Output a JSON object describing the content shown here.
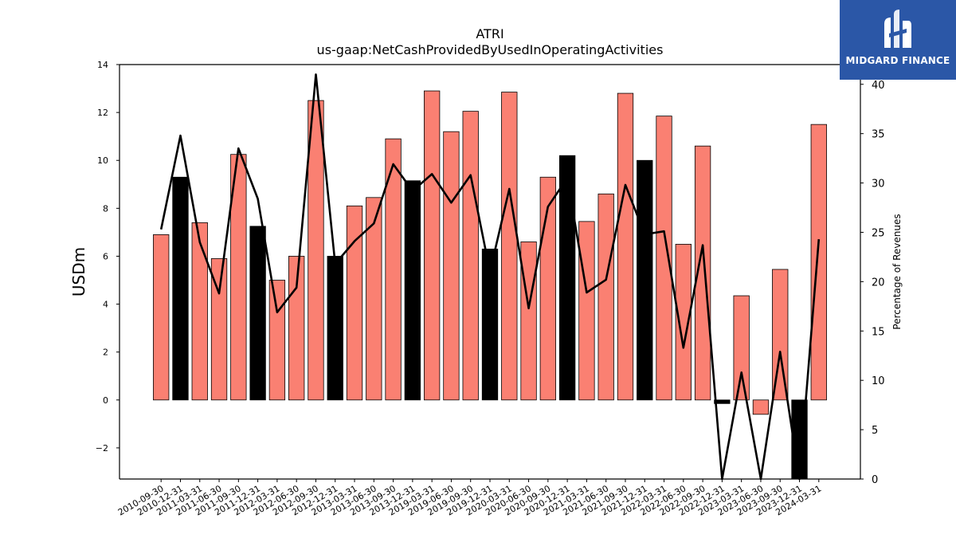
{
  "logo": {
    "text": "MIDGARD FINANCE",
    "icon": "midgard-logo-icon",
    "background": "#2b57a7"
  },
  "chart_data": {
    "type": "bar",
    "title": "ATRI",
    "subtitle": "us-gaap:NetCashProvidedByUsedInOperatingActivities",
    "ylabel": "USDm",
    "ylabel_right": "Percentage of Revenues",
    "ylim": [
      -3.3,
      14
    ],
    "ylim_right": [
      0,
      42
    ],
    "yticks": [
      "−2",
      "0",
      "2",
      "4",
      "6",
      "8",
      "10",
      "12",
      "14"
    ],
    "yticks_right": [
      "0",
      "5",
      "10",
      "15",
      "20",
      "25",
      "30",
      "35",
      "40"
    ],
    "grid": false,
    "colors": {
      "bar": "#fa8072",
      "bar_q4": "#000000",
      "line": "#000000"
    },
    "categories": [
      "2010-09-30",
      "2010-12-31",
      "2011-03-31",
      "2011-06-30",
      "2011-09-30",
      "2011-12-31",
      "2012-03-31",
      "2012-06-30",
      "2012-09-30",
      "2012-12-31",
      "2013-03-31",
      "2013-06-30",
      "2013-09-30",
      "2013-12-31",
      "2019-03-31",
      "2019-06-30",
      "2019-09-30",
      "2019-12-31",
      "2020-03-31",
      "2020-06-30",
      "2020-09-30",
      "2020-12-31",
      "2021-03-31",
      "2021-06-30",
      "2021-09-30",
      "2021-12-31",
      "2022-03-31",
      "2022-06-30",
      "2022-09-30",
      "2022-12-31",
      "2023-03-31",
      "2023-06-30",
      "2023-09-30",
      "2023-12-31",
      "2024-03-31"
    ],
    "series": [
      {
        "kind": "bar",
        "values": [
          6.9,
          9.3,
          7.4,
          5.9,
          10.25,
          7.25,
          5.0,
          6.0,
          12.5,
          6.0,
          8.1,
          8.45,
          10.9,
          9.15,
          12.9,
          11.2,
          12.05,
          6.3,
          12.85,
          6.6,
          9.3,
          10.2,
          7.45,
          8.6,
          12.8,
          10.0,
          11.85,
          6.5,
          10.6,
          -0.15,
          4.35,
          -0.6,
          5.45,
          -3.3,
          11.5
        ],
        "highlight": [
          false,
          true,
          false,
          false,
          false,
          true,
          false,
          false,
          false,
          true,
          false,
          false,
          false,
          true,
          false,
          false,
          false,
          true,
          false,
          false,
          false,
          true,
          false,
          false,
          false,
          true,
          false,
          false,
          false,
          true,
          false,
          false,
          false,
          true,
          false
        ]
      },
      {
        "kind": "line",
        "axis": "right",
        "values": [
          25.3,
          34.8,
          24.0,
          18.8,
          33.5,
          28.4,
          16.9,
          19.4,
          41.0,
          21.8,
          24.1,
          25.9,
          31.9,
          29.2,
          30.9,
          28.0,
          30.8,
          21.0,
          29.4,
          17.3,
          27.6,
          30.5,
          18.9,
          20.2,
          29.8,
          24.8,
          25.1,
          13.3,
          23.7,
          0.0,
          10.8,
          0.0,
          12.9,
          0.0,
          24.3
        ]
      }
    ]
  }
}
